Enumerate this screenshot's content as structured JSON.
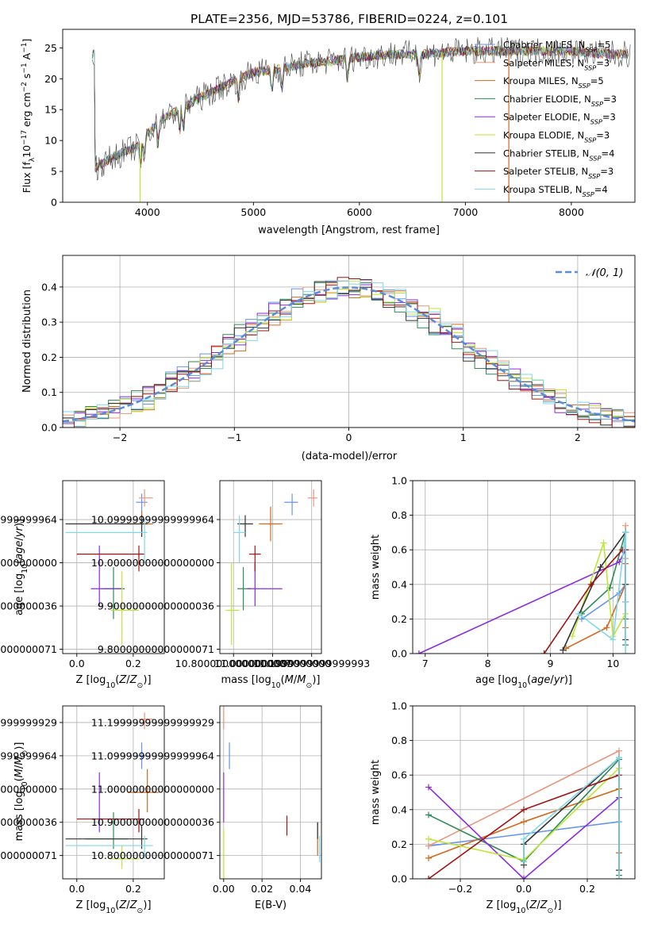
{
  "title": "PLATE=2356, MJD=53786, FIBERID=0224, z=0.101",
  "colors": [
    "#6495ed",
    "#e9967a",
    "#d2691e",
    "#2e8b57",
    "#8a2be2",
    "#bde632",
    "#333333",
    "#a01414",
    "#7fd8e8"
  ],
  "chart_data": [
    {
      "id": "spectrum",
      "type": "line",
      "xlabel": "wavelength [Angstrom, rest frame]",
      "ylabel": "Flux [f_λ 10^-17 erg cm^-2 s^-1 A^-1]",
      "xlim": [
        3200,
        8600
      ],
      "ylim": [
        0,
        28
      ],
      "xticks": [
        4000,
        5000,
        6000,
        7000,
        8000
      ],
      "yticks": [
        0,
        5,
        10,
        15,
        20,
        25
      ],
      "legend": {
        "placement": "top-right",
        "entries": [
          {
            "lib": "Chabrier MILES",
            "n": "5"
          },
          {
            "lib": "Salpeter MILES",
            "n": "3"
          },
          {
            "lib": "Kroupa MILES",
            "n": "5"
          },
          {
            "lib": "Chabrier ELODIE",
            "n": "3"
          },
          {
            "lib": "Salpeter ELODIE",
            "n": "3"
          },
          {
            "lib": "Kroupa ELODIE",
            "n": "3"
          },
          {
            "lib": "Chabrier STELIB",
            "n": "4"
          },
          {
            "lib": "Salpeter STELIB",
            "n": "3"
          },
          {
            "lib": "Kroupa STELIB",
            "n": "4"
          }
        ]
      },
      "continuum": {
        "x": [
          3500,
          3700,
          3900,
          4000,
          4100,
          4300,
          4500,
          4800,
          5000,
          5200,
          5500,
          5800,
          6000,
          6300,
          6600,
          7000,
          7300,
          7600,
          8000,
          8300,
          8550
        ],
        "y": [
          5.5,
          7.5,
          9,
          11,
          13,
          15,
          17,
          19.5,
          21,
          21.5,
          22.5,
          23,
          23.5,
          24,
          24,
          24.5,
          24.5,
          24.5,
          24.5,
          24,
          24
        ]
      },
      "drops": [
        {
          "x": 3930,
          "y": 0,
          "series": 5
        },
        {
          "x": 6780,
          "y": 0,
          "series": 5
        },
        {
          "x": 7410,
          "y": 0,
          "series": 2
        }
      ]
    },
    {
      "id": "residuals",
      "type": "histogram",
      "xlabel": "(data-model)/error",
      "ylabel": "Normed distribution",
      "xlim": [
        -2.5,
        2.5
      ],
      "ylim": [
        0,
        0.49
      ],
      "xticks": [
        -2,
        -1,
        0,
        1,
        2
      ],
      "yticks": [
        0.0,
        0.1,
        0.2,
        0.3,
        0.4
      ],
      "grid": true,
      "bin_width": 0.1,
      "reference": {
        "label": "𝒩(0, 1)",
        "mean": 0,
        "sigma": 1,
        "placement": "top-right"
      }
    },
    {
      "id": "age-vs-Z",
      "type": "errorbar",
      "xlabel": "Z [log10(Z/Z⊙)]",
      "ylabel": "age  [log10(age/yr)]",
      "xlim": [
        -0.05,
        0.31
      ],
      "ylim": [
        9.79,
        10.19
      ],
      "xticks": [
        0.0,
        0.2
      ],
      "yticks": [
        9.8,
        9.9,
        10.0,
        10.1
      ],
      "points": [
        {
          "s": 0,
          "x": 0.23,
          "y": 10.14,
          "xl": 0.21,
          "xh": 0.25,
          "yl": 10.11,
          "yh": 10.16
        },
        {
          "s": 1,
          "x": 0.24,
          "y": 10.15,
          "xl": 0.22,
          "xh": 0.27,
          "yl": 10.13,
          "yh": 10.17
        },
        {
          "s": 2,
          "x": 0.23,
          "y": 10.09,
          "xl": 0.15,
          "xh": 0.27,
          "yl": 10.06,
          "yh": 10.12
        },
        {
          "s": 3,
          "x": 0.13,
          "y": 9.94,
          "xl": 0.09,
          "xh": 0.17,
          "yl": 9.87,
          "yh": 9.99
        },
        {
          "s": 4,
          "x": 0.08,
          "y": 9.94,
          "xl": 0.05,
          "xh": 0.16,
          "yl": 9.9,
          "yh": 10.04
        },
        {
          "s": 5,
          "x": 0.16,
          "y": 9.89,
          "xl": 0.12,
          "xh": 0.22,
          "yl": 9.81,
          "yh": 9.98
        },
        {
          "s": 6,
          "x": 0.23,
          "y": 10.09,
          "xl": -0.04,
          "xh": 0.25,
          "yl": 10.06,
          "yh": 10.11
        },
        {
          "s": 7,
          "x": 0.22,
          "y": 10.02,
          "xl": 0.0,
          "xh": 0.24,
          "yl": 9.98,
          "yh": 10.04
        },
        {
          "s": 8,
          "x": 0.24,
          "y": 10.07,
          "xl": -0.04,
          "xh": 0.25,
          "yl": 10.0,
          "yh": 10.1
        }
      ]
    },
    {
      "id": "age-vs-mass",
      "type": "errorbar",
      "xlabel": "mass [log10(M/M⊙)]",
      "ylabel": "",
      "xlim": [
        10.73,
        11.25
      ],
      "ylim": [
        9.79,
        10.19
      ],
      "xticks": [
        10.8,
        11.0,
        11.2
      ],
      "yticks": [
        9.8,
        9.9,
        10.0,
        10.1
      ],
      "points": [
        {
          "s": 0,
          "x": 11.1,
          "y": 10.14,
          "xl": 11.06,
          "xh": 11.13,
          "yl": 10.11,
          "yh": 10.16
        },
        {
          "s": 1,
          "x": 11.21,
          "y": 10.15,
          "xl": 11.18,
          "xh": 11.23,
          "yl": 10.13,
          "yh": 10.17
        },
        {
          "s": 2,
          "x": 10.99,
          "y": 10.09,
          "xl": 10.93,
          "xh": 11.05,
          "yl": 10.05,
          "yh": 10.13
        },
        {
          "s": 3,
          "x": 10.85,
          "y": 9.94,
          "xl": 10.82,
          "xh": 10.89,
          "yl": 9.89,
          "yh": 9.99
        },
        {
          "s": 4,
          "x": 10.91,
          "y": 9.94,
          "xl": 10.87,
          "xh": 11.05,
          "yl": 9.9,
          "yh": 10.0
        },
        {
          "s": 5,
          "x": 10.79,
          "y": 9.89,
          "xl": 10.76,
          "xh": 10.83,
          "yl": 9.81,
          "yh": 10.0
        },
        {
          "s": 6,
          "x": 10.86,
          "y": 10.09,
          "xl": 10.82,
          "xh": 10.9,
          "yl": 10.06,
          "yh": 10.11
        },
        {
          "s": 7,
          "x": 10.91,
          "y": 10.02,
          "xl": 10.88,
          "xh": 10.94,
          "yl": 9.98,
          "yh": 10.04
        },
        {
          "s": 8,
          "x": 10.83,
          "y": 10.07,
          "xl": 10.8,
          "xh": 10.86,
          "yl": 10.0,
          "yh": 10.11
        }
      ]
    },
    {
      "id": "mass-weight-vs-age",
      "type": "line",
      "xlabel": "age  [log10(age/yr)]",
      "ylabel": "mass weight",
      "xlim": [
        6.8,
        10.35
      ],
      "ylim": [
        0,
        1.0
      ],
      "xticks": [
        7,
        8,
        9,
        10
      ],
      "yticks": [
        0.0,
        0.2,
        0.4,
        0.6,
        0.8,
        1.0
      ],
      "grid": true,
      "series": [
        {
          "s": 0,
          "x": [
            9.5,
            10.1,
            10.2,
            10.2,
            10.2
          ],
          "y": [
            0.2,
            0.35,
            0.4,
            0.6,
            0.08
          ]
        },
        {
          "s": 1,
          "x": [
            10.2,
            10.2,
            10.2
          ],
          "y": [
            0.74,
            0.55,
            0.3
          ]
        },
        {
          "s": 2,
          "x": [
            9.25,
            9.9,
            10.2,
            10.2,
            10.2
          ],
          "y": [
            0.03,
            0.15,
            0.4,
            0.52,
            0.15
          ]
        },
        {
          "s": 3,
          "x": [
            9.5,
            9.95,
            10.2,
            10.2,
            10.2
          ],
          "y": [
            0.23,
            0.38,
            0.7,
            0.2,
            0.05
          ]
        },
        {
          "s": 4,
          "x": [
            6.9,
            10.1,
            10.2,
            10.2
          ],
          "y": [
            0.0,
            0.53,
            0.6,
            0.3
          ]
        },
        {
          "s": 5,
          "x": [
            9.35,
            9.85,
            10.0,
            10.2
          ],
          "y": [
            0.1,
            0.64,
            0.1,
            0.23
          ]
        },
        {
          "s": 6,
          "x": [
            9.2,
            9.8,
            10.2,
            10.2,
            10.2
          ],
          "y": [
            0.02,
            0.5,
            0.7,
            0.4,
            0.08
          ]
        },
        {
          "s": 7,
          "x": [
            8.9,
            9.65,
            10.15,
            10.2
          ],
          "y": [
            0.0,
            0.4,
            0.6,
            0.6
          ]
        },
        {
          "s": 8,
          "x": [
            9.45,
            10.0,
            10.2,
            10.2,
            10.2
          ],
          "y": [
            0.23,
            0.08,
            0.7,
            0.3,
            0.0
          ]
        }
      ]
    },
    {
      "id": "mass-vs-Z",
      "type": "errorbar",
      "xlabel": "Z [log10(Z/Z⊙)]",
      "ylabel": "mass [log10(M/M⊙)]",
      "xlim": [
        -0.05,
        0.31
      ],
      "ylim": [
        10.73,
        11.25
      ],
      "xticks": [
        0.0,
        0.2
      ],
      "yticks": [
        10.8,
        10.9,
        11.0,
        11.1,
        11.2
      ],
      "points": [
        {
          "s": 0,
          "x": 0.23,
          "y": 11.1,
          "xl": 0.21,
          "xh": 0.25,
          "yl": 11.06,
          "yh": 11.14
        },
        {
          "s": 1,
          "x": 0.24,
          "y": 11.21,
          "xl": 0.22,
          "xh": 0.27,
          "yl": 11.18,
          "yh": 11.23
        },
        {
          "s": 2,
          "x": 0.25,
          "y": 10.99,
          "xl": 0.18,
          "xh": 0.29,
          "yl": 10.93,
          "yh": 11.06
        },
        {
          "s": 3,
          "x": 0.13,
          "y": 10.85,
          "xl": 0.03,
          "xh": 0.18,
          "yl": 10.82,
          "yh": 10.93
        },
        {
          "s": 4,
          "x": 0.08,
          "y": 10.91,
          "xl": 0.05,
          "xh": 0.16,
          "yl": 10.87,
          "yh": 11.05
        },
        {
          "s": 5,
          "x": 0.16,
          "y": 10.79,
          "xl": 0.12,
          "xh": 0.22,
          "yl": 10.76,
          "yh": 10.83
        },
        {
          "s": 6,
          "x": 0.23,
          "y": 10.85,
          "xl": -0.04,
          "xh": 0.25,
          "yl": 10.82,
          "yh": 10.89
        },
        {
          "s": 7,
          "x": 0.22,
          "y": 10.91,
          "xl": 0.0,
          "xh": 0.24,
          "yl": 10.87,
          "yh": 10.94
        },
        {
          "s": 8,
          "x": 0.24,
          "y": 10.83,
          "xl": -0.04,
          "xh": 0.27,
          "yl": 10.79,
          "yh": 10.86
        }
      ]
    },
    {
      "id": "mass-vs-EBV",
      "type": "errorbar",
      "xlabel": "E(B-V)",
      "ylabel": "",
      "xlim": [
        -0.002,
        0.051
      ],
      "ylim": [
        10.73,
        11.25
      ],
      "xticks": [
        0.0,
        0.02,
        0.04
      ],
      "yticks": [
        10.8,
        10.9,
        11.0,
        11.1,
        11.2
      ],
      "points": [
        {
          "s": 0,
          "x": 0.003,
          "y": 11.1,
          "yl": 11.06,
          "yh": 11.14
        },
        {
          "s": 1,
          "x": 0.0,
          "y": 11.21,
          "yl": 11.18,
          "yh": 11.25
        },
        {
          "s": 2,
          "x": 0.049,
          "y": 10.85,
          "yl": 10.8,
          "yh": 10.9
        },
        {
          "s": 4,
          "x": 0.0,
          "y": 10.98,
          "yl": 10.9,
          "yh": 11.05
        },
        {
          "s": 5,
          "x": 0.0,
          "y": 10.8,
          "yl": 10.73,
          "yh": 10.88
        },
        {
          "s": 6,
          "x": 0.049,
          "y": 10.87,
          "yl": 10.85,
          "yh": 10.9
        },
        {
          "s": 7,
          "x": 0.033,
          "y": 10.88,
          "yl": 10.86,
          "yh": 10.92
        },
        {
          "s": 8,
          "x": 0.05,
          "y": 10.82,
          "yl": 10.78,
          "yh": 10.86
        }
      ]
    },
    {
      "id": "mass-weight-vs-Z",
      "type": "line",
      "xlabel": "Z [log10(Z/Z⊙)]",
      "ylabel": "mass weight",
      "xlim": [
        -0.35,
        0.35
      ],
      "ylim": [
        0,
        1.0
      ],
      "xticks": [
        -0.2,
        0.0,
        0.2
      ],
      "yticks": [
        0.0,
        0.2,
        0.4,
        0.6,
        0.8,
        1.0
      ],
      "grid": true,
      "series": [
        {
          "s": 0,
          "x": [
            -0.3,
            0.3,
            0.3
          ],
          "y": [
            0.19,
            0.33,
            0.0
          ]
        },
        {
          "s": 1,
          "x": [
            -0.3,
            0.3,
            0.3
          ],
          "y": [
            0.19,
            0.74,
            0.15
          ]
        },
        {
          "s": 2,
          "x": [
            -0.3,
            0.0,
            0.3,
            0.3
          ],
          "y": [
            0.12,
            0.33,
            0.52,
            0.15
          ]
        },
        {
          "s": 3,
          "x": [
            -0.3,
            0.0,
            0.3,
            0.3
          ],
          "y": [
            0.37,
            0.1,
            0.69,
            0.02
          ]
        },
        {
          "s": 4,
          "x": [
            -0.3,
            0.0,
            0.3,
            0.3
          ],
          "y": [
            0.53,
            0.0,
            0.47,
            0.0
          ]
        },
        {
          "s": 5,
          "x": [
            -0.3,
            0.0,
            0.3,
            0.3
          ],
          "y": [
            0.23,
            0.11,
            0.64,
            0.0
          ]
        },
        {
          "s": 6,
          "x": [
            0.0,
            0.0,
            0.3,
            0.3
          ],
          "y": [
            0.08,
            0.2,
            0.7,
            0.05
          ]
        },
        {
          "s": 7,
          "x": [
            -0.3,
            0.0,
            0.3
          ],
          "y": [
            0.0,
            0.4,
            0.6
          ]
        },
        {
          "s": 8,
          "x": [
            0.0,
            0.0,
            0.3,
            0.3
          ],
          "y": [
            0.1,
            0.23,
            0.7,
            0.0
          ]
        }
      ]
    }
  ]
}
